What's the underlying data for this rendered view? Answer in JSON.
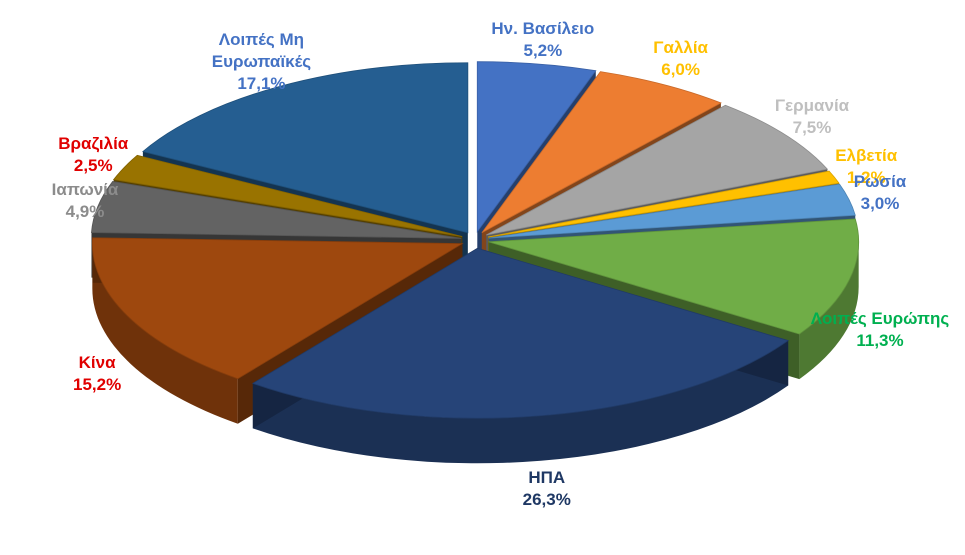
{
  "chart_data": {
    "type": "pie3d",
    "categories": [
      "Ην. Βασίλειο",
      "Γαλλία",
      "Γερμανία",
      "Ελβετία",
      "Ρωσία",
      "Λοιπές Ευρώπης",
      "ΗΠΑ",
      "Κίνα",
      "Ιαπωνία",
      "Βραζιλία",
      "Λοιπές Μη Ευρωπαϊκές"
    ],
    "values": [
      5.2,
      6.0,
      7.5,
      1.2,
      3.0,
      11.3,
      26.3,
      15.2,
      4.9,
      2.5,
      17.1
    ],
    "value_labels": [
      "5,2%",
      "6,0%",
      "7,5%",
      "1,2%",
      "3,0%",
      "11,3%",
      "26,3%",
      "15,2%",
      "4,9%",
      "2,5%",
      "17,1%"
    ],
    "colors": [
      "#4472c4",
      "#ed7d31",
      "#a5a5a5",
      "#ffc000",
      "#5b9bd5",
      "#70ad47",
      "#264478",
      "#9e480e",
      "#636363",
      "#997300",
      "#255e91"
    ],
    "label_colors": [
      "#4472c4",
      "#ffc000",
      "#bfbfbf",
      "#ffc000",
      "#4472c4",
      "#00b050",
      "#1f3864",
      "#e00000",
      "#8c8c8c",
      "#e00000",
      "#4472c4"
    ]
  }
}
